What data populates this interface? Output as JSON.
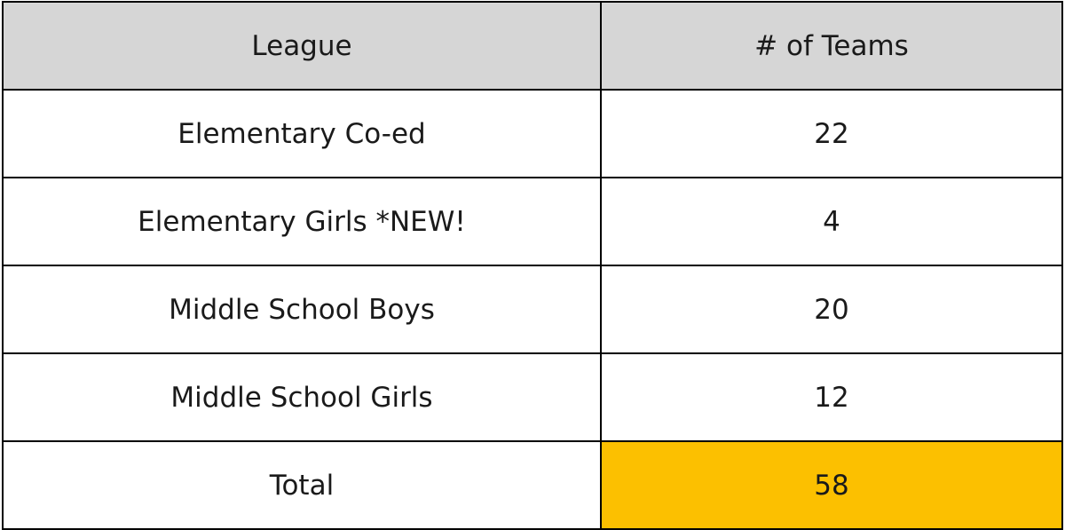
{
  "table": {
    "headers": [
      "League",
      "# of Teams"
    ],
    "rows": [
      [
        "Elementary Co-ed",
        "22"
      ],
      [
        "Elementary Girls *NEW!",
        "4"
      ],
      [
        "Middle School Boys",
        "20"
      ],
      [
        "Middle School Girls",
        "12"
      ]
    ],
    "total": [
      "Total",
      "58"
    ]
  },
  "colors": {
    "header_bg": "#d6d6d6",
    "highlight": "#fcc000",
    "border": "#000000"
  }
}
